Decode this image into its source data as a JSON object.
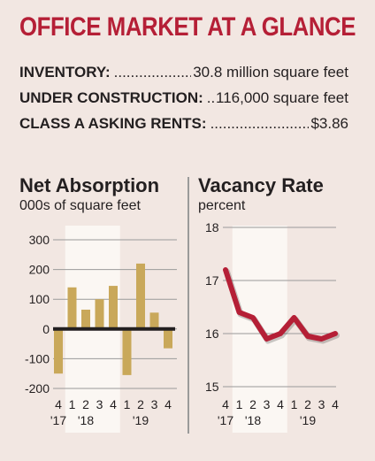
{
  "header": {
    "title": "OFFICE MARKET AT A GLANCE"
  },
  "stats": [
    {
      "label": "INVENTORY:",
      "value": "30.8 million square feet"
    },
    {
      "label": "UNDER CONSTRUCTION:",
      "value": "116,000 square feet"
    },
    {
      "label": "CLASS A ASKING RENTS:",
      "value": "$3.86"
    }
  ],
  "colors": {
    "title": "#b51f36",
    "bar": "#c9a85a",
    "line": "#b51f36",
    "zero_line": "#231f20",
    "highlight_band": "#fbf7f3"
  },
  "chart_data": [
    {
      "type": "bar",
      "title": "Net Absorption",
      "subtitle": "000s of square feet",
      "categories": [
        "4",
        "1",
        "2",
        "3",
        "4",
        "1",
        "2",
        "3",
        "4"
      ],
      "year_labels": [
        "'17",
        "'18",
        "'19"
      ],
      "values": [
        -150,
        140,
        65,
        100,
        145,
        -155,
        220,
        55,
        -65
      ],
      "ylim": [
        -200,
        300
      ],
      "yticks": [
        300,
        200,
        100,
        0,
        -100,
        -200
      ],
      "ytick_labels": [
        "300",
        "200",
        "100",
        "0",
        "-100",
        "-200"
      ]
    },
    {
      "type": "line",
      "title": "Vacancy Rate",
      "subtitle": "percent",
      "categories": [
        "4",
        "1",
        "2",
        "3",
        "4",
        "1",
        "2",
        "3",
        "4"
      ],
      "year_labels": [
        "'17",
        "'18",
        "'19"
      ],
      "values": [
        17.2,
        16.4,
        16.3,
        15.9,
        16.0,
        16.3,
        15.95,
        15.9,
        16.0
      ],
      "ylim": [
        15,
        18
      ],
      "yticks": [
        18,
        17,
        16,
        15
      ],
      "ytick_labels": [
        "18",
        "17",
        "16",
        "15"
      ]
    }
  ]
}
